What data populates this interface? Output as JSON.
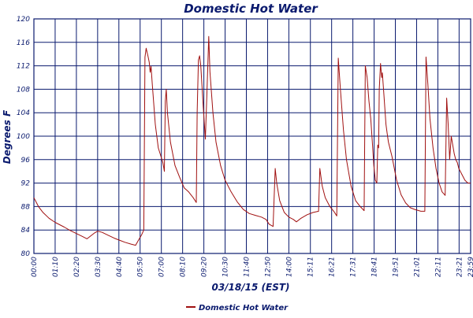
{
  "colors": {
    "series": "#a01010",
    "grid": "#0a1a6e",
    "text": "#0a1a6e",
    "background": "#ffffff"
  },
  "chart_data": {
    "type": "line",
    "title": "Domestic Hot Water",
    "xlabel": "03/18/15 (EST)",
    "ylabel": "Degrees F",
    "ylim": [
      80,
      120
    ],
    "yticks": [
      "80",
      "84",
      "88",
      "92",
      "96",
      "100",
      "104",
      "108",
      "112",
      "116",
      "120"
    ],
    "xlim": [
      "00:00",
      "23:59"
    ],
    "xticks": [
      "00:00",
      "01:10",
      "02:20",
      "03:30",
      "04:40",
      "05:50",
      "07:00",
      "08:10",
      "09:20",
      "10:30",
      "11:40",
      "12:50",
      "14:00",
      "15:11",
      "16:21",
      "17:31",
      "18:41",
      "19:51",
      "21:01",
      "22:11",
      "23:21",
      "23:59"
    ],
    "grid": true,
    "legend_position": "bottom-left",
    "series": [
      {
        "name": "Domestic Hot Water",
        "color": "#a01010",
        "points": [
          [
            "00:00",
            89.5
          ],
          [
            "00:15",
            88.0
          ],
          [
            "00:30",
            87.0
          ],
          [
            "00:50",
            86.0
          ],
          [
            "01:10",
            85.3
          ],
          [
            "01:40",
            84.5
          ],
          [
            "02:00",
            83.9
          ],
          [
            "02:20",
            83.4
          ],
          [
            "02:40",
            82.9
          ],
          [
            "02:55",
            82.5
          ],
          [
            "03:05",
            82.9
          ],
          [
            "03:20",
            83.5
          ],
          [
            "03:30",
            83.8
          ],
          [
            "03:45",
            83.6
          ],
          [
            "04:05",
            83.1
          ],
          [
            "04:25",
            82.6
          ],
          [
            "04:40",
            82.3
          ],
          [
            "05:00",
            81.9
          ],
          [
            "05:20",
            81.6
          ],
          [
            "05:35",
            81.4
          ],
          [
            "05:45",
            82.3
          ],
          [
            "05:55",
            83.2
          ],
          [
            "06:02",
            84.0
          ],
          [
            "06:06",
            113.5
          ],
          [
            "06:10",
            115.0
          ],
          [
            "06:16",
            113.6
          ],
          [
            "06:20",
            112.6
          ],
          [
            "06:23",
            110.9
          ],
          [
            "06:26",
            111.9
          ],
          [
            "06:30",
            109.0
          ],
          [
            "06:40",
            102.0
          ],
          [
            "06:50",
            98.0
          ],
          [
            "07:05",
            95.5
          ],
          [
            "07:10",
            94.0
          ],
          [
            "07:13",
            106.0
          ],
          [
            "07:16",
            108.0
          ],
          [
            "07:20",
            104.0
          ],
          [
            "07:30",
            99.0
          ],
          [
            "07:45",
            95.0
          ],
          [
            "08:00",
            93.0
          ],
          [
            "08:15",
            91.2
          ],
          [
            "08:30",
            90.5
          ],
          [
            "08:45",
            89.5
          ],
          [
            "08:55",
            88.7
          ],
          [
            "08:58",
            104.0
          ],
          [
            "09:02",
            113.0
          ],
          [
            "09:06",
            113.7
          ],
          [
            "09:10",
            112.0
          ],
          [
            "09:18",
            105.0
          ],
          [
            "09:25",
            99.5
          ],
          [
            "09:30",
            107.0
          ],
          [
            "09:36",
            117.0
          ],
          [
            "09:40",
            111.0
          ],
          [
            "09:50",
            104.0
          ],
          [
            "10:00",
            99.0
          ],
          [
            "10:15",
            95.0
          ],
          [
            "10:30",
            92.5
          ],
          [
            "10:50",
            90.5
          ],
          [
            "11:10",
            88.8
          ],
          [
            "11:30",
            87.5
          ],
          [
            "11:50",
            86.8
          ],
          [
            "12:10",
            86.5
          ],
          [
            "12:30",
            86.2
          ],
          [
            "12:45",
            85.8
          ],
          [
            "12:55",
            85.0
          ],
          [
            "13:08",
            84.6
          ],
          [
            "13:15",
            94.5
          ],
          [
            "13:20",
            92.0
          ],
          [
            "13:30",
            89.0
          ],
          [
            "13:45",
            87.0
          ],
          [
            "14:00",
            86.2
          ],
          [
            "14:15",
            85.8
          ],
          [
            "14:25",
            85.4
          ],
          [
            "14:40",
            86.0
          ],
          [
            "15:00",
            86.6
          ],
          [
            "15:20",
            87.0
          ],
          [
            "15:38",
            87.2
          ],
          [
            "15:42",
            94.5
          ],
          [
            "15:50",
            91.5
          ],
          [
            "16:00",
            89.5
          ],
          [
            "16:15",
            88.0
          ],
          [
            "16:28",
            87.2
          ],
          [
            "16:38",
            86.4
          ],
          [
            "16:43",
            113.3
          ],
          [
            "16:50",
            108.0
          ],
          [
            "17:00",
            101.0
          ],
          [
            "17:10",
            96.0
          ],
          [
            "17:25",
            91.5
          ],
          [
            "17:40",
            89.0
          ],
          [
            "17:55",
            88.0
          ],
          [
            "18:08",
            87.3
          ],
          [
            "18:12",
            112.0
          ],
          [
            "18:18",
            110.0
          ],
          [
            "18:24",
            106.0
          ],
          [
            "18:30",
            103.0
          ],
          [
            "18:35",
            99.0
          ],
          [
            "18:40",
            95.0
          ],
          [
            "18:45",
            92.5
          ],
          [
            "18:50",
            92.0
          ],
          [
            "18:53",
            98.5
          ],
          [
            "18:56",
            98.0
          ],
          [
            "18:58",
            108.0
          ],
          [
            "19:02",
            112.4
          ],
          [
            "19:06",
            110.0
          ],
          [
            "19:08",
            110.8
          ],
          [
            "19:12",
            108.0
          ],
          [
            "19:20",
            102.0
          ],
          [
            "19:24",
            100.5
          ],
          [
            "19:28",
            99.0
          ],
          [
            "19:40",
            96.5
          ],
          [
            "19:55",
            92.5
          ],
          [
            "20:10",
            90.0
          ],
          [
            "20:25",
            88.6
          ],
          [
            "20:40",
            87.8
          ],
          [
            "20:55",
            87.5
          ],
          [
            "21:15",
            87.2
          ],
          [
            "21:28",
            87.2
          ],
          [
            "21:32",
            113.5
          ],
          [
            "21:38",
            109.0
          ],
          [
            "21:45",
            103.0
          ],
          [
            "21:55",
            98.0
          ],
          [
            "22:05",
            94.5
          ],
          [
            "22:15",
            92.0
          ],
          [
            "22:25",
            90.5
          ],
          [
            "22:35",
            89.9
          ],
          [
            "22:40",
            106.5
          ],
          [
            "22:45",
            102.0
          ],
          [
            "22:50",
            96.0
          ],
          [
            "22:55",
            100.0
          ],
          [
            "23:00",
            98.5
          ],
          [
            "23:05",
            97.0
          ],
          [
            "23:10",
            96.0
          ],
          [
            "23:15",
            95.5
          ],
          [
            "23:20",
            94.5
          ],
          [
            "23:30",
            93.5
          ],
          [
            "23:40",
            92.5
          ],
          [
            "23:50",
            92.0
          ],
          [
            "23:59",
            92.0
          ]
        ]
      }
    ]
  }
}
